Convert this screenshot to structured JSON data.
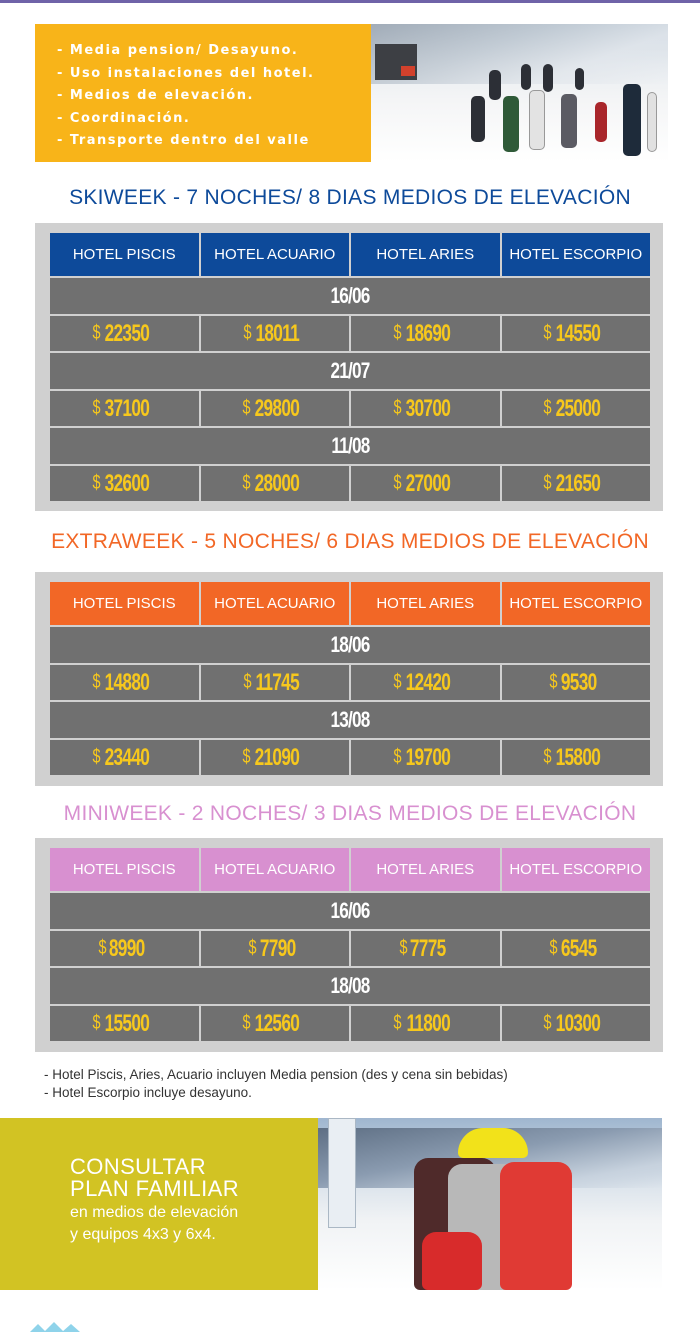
{
  "banner": {
    "items": [
      "- Media pension/ Desayuno.",
      "- Uso instalaciones del hotel.",
      "- Medios de elevación.",
      "- Coordinación.",
      "- Transporte dentro del valle"
    ]
  },
  "colors": {
    "skiweek": "#0d4a9a",
    "extraweek": "#f26726",
    "miniweek": "#d890d0",
    "price": "#f7c81c",
    "row_bg": "#707070",
    "table_bg": "#d0d0d0"
  },
  "currency": "$",
  "hotels": [
    "HOTEL PISCIS",
    "HOTEL ACUARIO",
    "HOTEL ARIES",
    "HOTEL ESCORPIO"
  ],
  "sections": [
    {
      "title": "SKIWEEK - 7 NOCHES/ 8 DIAS MEDIOS DE ELEVACIÓN",
      "groups": [
        {
          "date": "16/06",
          "prices": [
            "22350",
            "18011",
            "18690",
            "14550"
          ]
        },
        {
          "date": "21/07",
          "prices": [
            "37100",
            "29800",
            "30700",
            "25000"
          ]
        },
        {
          "date": "11/08",
          "prices": [
            "32600",
            "28000",
            "27000",
            "21650"
          ]
        }
      ]
    },
    {
      "title": "EXTRAWEEK - 5 NOCHES/ 6 DIAS MEDIOS DE ELEVACIÓN",
      "groups": [
        {
          "date": "18/06",
          "prices": [
            "14880",
            "11745",
            "12420",
            "9530"
          ]
        },
        {
          "date": "13/08",
          "prices": [
            "23440",
            "21090",
            "19700",
            "15800"
          ]
        }
      ]
    },
    {
      "title": "MINIWEEK - 2 NOCHES/ 3 DIAS MEDIOS DE ELEVACIÓN",
      "groups": [
        {
          "date": "16/06",
          "prices": [
            "8990",
            "7790",
            "7775",
            "6545"
          ]
        },
        {
          "date": "18/08",
          "prices": [
            "15500",
            "12560",
            "11800",
            "10300"
          ]
        }
      ]
    }
  ],
  "notes": [
    "- Hotel Piscis, Aries, Acuario incluyen Media pension (des y cena sin bebidas)",
    "- Hotel Escorpio incluye desayuno."
  ],
  "family": {
    "line1": "CONSULTAR",
    "line2": "PLAN FAMILIAR",
    "line3": "en medios de elevación",
    "line4": "y equipos 4x3 y 6x4."
  }
}
